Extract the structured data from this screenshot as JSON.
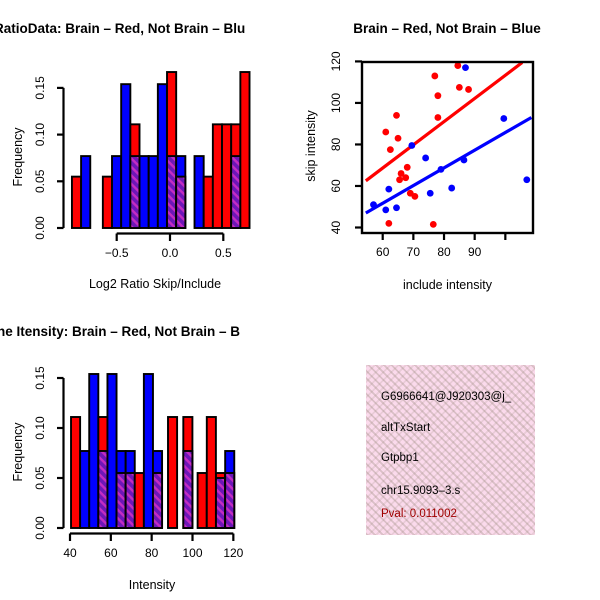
{
  "colors": {
    "red": "#FF0000",
    "blue": "#0000FF",
    "purple_fill": "#6E16B8",
    "purple_stripe": "#C32CC3",
    "pink_bg": "#FBDAEC",
    "pval_red": "#A00000",
    "axis": "#000000"
  },
  "chart_data": [
    {
      "type": "bar",
      "panel": "top-left",
      "title": "RatioData: Brain – Red, Not Brain – Blu",
      "xlabel": "Log2 Ratio Skip/Include",
      "ylabel": "Frequency",
      "xlim": [
        -0.97,
        0.76
      ],
      "ylim": [
        0,
        0.169
      ],
      "grid": false,
      "x_ticks": [
        -0.5,
        0.0,
        0.5
      ],
      "x_tick_labels": [
        "−0.5",
        "0.0",
        "0.5"
      ],
      "y_ticks": [
        0,
        0.05,
        0.1,
        0.15
      ],
      "y_tick_labels": [
        "0.00",
        "0.05",
        "0.10",
        "0.15"
      ],
      "bar_width": 0.086,
      "legend_note": "red = Brain, blue = Not Brain, purple hatch = overlap",
      "bars": [
        {
          "x": -0.92,
          "color": "red",
          "h": 0.055
        },
        {
          "x": -0.834,
          "color": "blue",
          "h": 0.077
        },
        {
          "x": -0.63,
          "color": "red",
          "h": 0.055
        },
        {
          "x": -0.544,
          "color": "blue",
          "h": 0.077
        },
        {
          "x": -0.458,
          "color": "blue",
          "h": 0.154
        },
        {
          "x": -0.372,
          "color": "red",
          "h": 0.111,
          "overlap": 0.077
        },
        {
          "x": -0.286,
          "color": "blue",
          "h": 0.077
        },
        {
          "x": -0.2,
          "color": "blue",
          "h": 0.077
        },
        {
          "x": -0.114,
          "color": "blue",
          "h": 0.154
        },
        {
          "x": -0.028,
          "color": "red",
          "h": 0.167,
          "overlap": 0.077
        },
        {
          "x": 0.058,
          "color": "blue",
          "h": 0.077,
          "overlap": 0.055
        },
        {
          "x": 0.23,
          "color": "blue",
          "h": 0.077
        },
        {
          "x": 0.316,
          "color": "red",
          "h": 0.055
        },
        {
          "x": 0.402,
          "color": "red",
          "h": 0.111
        },
        {
          "x": 0.488,
          "color": "red",
          "h": 0.111
        },
        {
          "x": 0.574,
          "color": "red",
          "h": 0.111,
          "overlap": 0.077
        },
        {
          "x": 0.66,
          "color": "red",
          "h": 0.167
        }
      ]
    },
    {
      "type": "scatter",
      "panel": "top-right",
      "title": "Brain – Red, Not Brain – Blue",
      "xlabel": "include intensity",
      "ylabel": "skip intensity",
      "xlim": [
        54.5,
        108.5
      ],
      "ylim": [
        39,
        121.5
      ],
      "grid": false,
      "x_ticks": [
        60,
        70,
        80,
        90,
        100
      ],
      "x_tick_labels": [
        "60",
        "70",
        "80",
        "90",
        ""
      ],
      "y_ticks": [
        40,
        60,
        80,
        100,
        120
      ],
      "y_tick_labels": [
        "40",
        "60",
        "80",
        "100",
        "120"
      ],
      "series": [
        {
          "name": "Brain",
          "color": "red",
          "points": [
            [
              77,
              113
            ],
            [
              84.5,
              118
            ],
            [
              85,
              107.5
            ],
            [
              88,
              106.5
            ],
            [
              78,
              103.5
            ],
            [
              64.5,
              94
            ],
            [
              78,
              93
            ],
            [
              61,
              86
            ],
            [
              65,
              83
            ],
            [
              62.5,
              77.5
            ],
            [
              68,
              69
            ],
            [
              66,
              66
            ],
            [
              67.5,
              64
            ],
            [
              65.5,
              63
            ],
            [
              69,
              56.5
            ],
            [
              70.5,
              55
            ],
            [
              62,
              42
            ],
            [
              76.5,
              41.5
            ]
          ],
          "fit_line": {
            "x1": 54.5,
            "y1": 62.5,
            "x2": 105.5,
            "y2": 119.5
          }
        },
        {
          "name": "Not Brain",
          "color": "blue",
          "points": [
            [
              87,
              117
            ],
            [
              99.5,
              92.5
            ],
            [
              69.5,
              79.5
            ],
            [
              74,
              73.5
            ],
            [
              86.5,
              72.5
            ],
            [
              79,
              68
            ],
            [
              82.5,
              59
            ],
            [
              75.5,
              56.5
            ],
            [
              62,
              58.5
            ],
            [
              57,
              51
            ],
            [
              61,
              48.5
            ],
            [
              64.5,
              49.5
            ],
            [
              107,
              63
            ]
          ],
          "fit_line": {
            "x1": 54.5,
            "y1": 47,
            "x2": 108.5,
            "y2": 93
          }
        }
      ]
    },
    {
      "type": "bar",
      "panel": "bottom-left",
      "title": "ne Itensity: Brain – Red, Not Brain – B",
      "xlabel": "Intensity",
      "ylabel": "Frequency",
      "xlim": [
        38,
        122
      ],
      "ylim": [
        0,
        0.16
      ],
      "grid": false,
      "x_ticks": [
        40,
        60,
        80,
        100,
        120
      ],
      "x_tick_labels": [
        "40",
        "60",
        "80",
        "100",
        "120"
      ],
      "y_ticks": [
        0,
        0.05,
        0.1,
        0.15
      ],
      "y_tick_labels": [
        "0.00",
        "0.05",
        "0.10",
        "0.15"
      ],
      "bar_width": 4.46,
      "legend_note": "red = Brain, blue = Not Brain, purple hatch = overlap",
      "bars": [
        {
          "x": 40.5,
          "color": "red",
          "h": 0.111
        },
        {
          "x": 44.96,
          "color": "blue",
          "h": 0.077
        },
        {
          "x": 49.42,
          "color": "blue",
          "h": 0.154
        },
        {
          "x": 53.88,
          "color": "red",
          "h": 0.111,
          "overlap": 0.077
        },
        {
          "x": 58.34,
          "color": "blue",
          "h": 0.154
        },
        {
          "x": 62.8,
          "color": "blue",
          "h": 0.077,
          "overlap": 0.055
        },
        {
          "x": 67.26,
          "color": "blue",
          "h": 0.077,
          "overlap": 0.055
        },
        {
          "x": 71.72,
          "color": "red",
          "h": 0.055
        },
        {
          "x": 76.18,
          "color": "blue",
          "h": 0.154
        },
        {
          "x": 80.64,
          "color": "blue",
          "h": 0.077,
          "overlap": 0.055
        },
        {
          "x": 88.0,
          "color": "red",
          "h": 0.111
        },
        {
          "x": 95.5,
          "color": "red",
          "h": 0.111,
          "overlap": 0.077
        },
        {
          "x": 102.5,
          "color": "red",
          "h": 0.055
        },
        {
          "x": 107.0,
          "color": "red",
          "h": 0.111
        },
        {
          "x": 111.5,
          "color": "red",
          "h": 0.055,
          "overlap": 0.05
        },
        {
          "x": 116.0,
          "color": "blue",
          "h": 0.077,
          "overlap": 0.055
        }
      ]
    }
  ],
  "info_box": {
    "lines": [
      "G6966641@J920303@j_",
      "altTxStart",
      "Gtpbp1",
      "chr15.9093–3.s"
    ],
    "pval": "Pval: 0.011002"
  }
}
